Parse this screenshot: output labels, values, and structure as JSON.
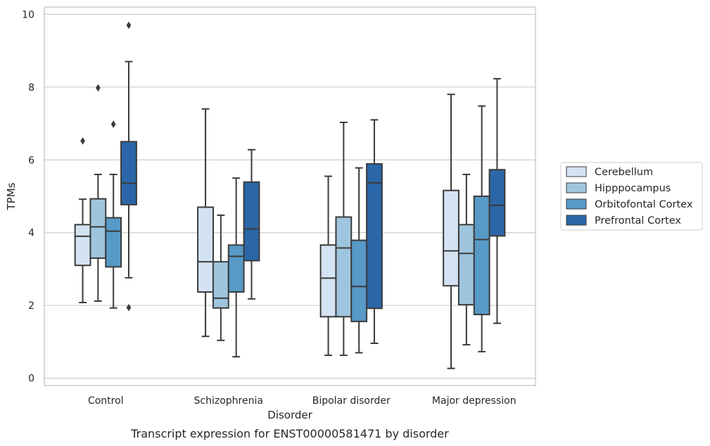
{
  "chart_data": {
    "type": "box",
    "title": "",
    "caption": "Transcript expression for ENST00000581471 by disorder",
    "xlabel": "Disorder",
    "ylabel": "TPMs",
    "ylim": [
      -0.2,
      10.2
    ],
    "yticks": [
      0,
      2,
      4,
      6,
      8,
      10
    ],
    "grid": "horizontal",
    "legend_position": "right",
    "categories": [
      "Control",
      "Schizophrenia",
      "Bipolar disorder",
      "Major depression"
    ],
    "series": [
      {
        "name": "Cerebellum",
        "color": "#d4e3f3",
        "boxes": [
          {
            "whisker_low": 2.08,
            "q1": 3.1,
            "median": 3.9,
            "q3": 4.22,
            "whisker_high": 4.92,
            "outliers": [
              6.52
            ]
          },
          {
            "whisker_low": 1.15,
            "q1": 2.37,
            "median": 3.2,
            "q3": 4.7,
            "whisker_high": 7.4,
            "outliers": []
          },
          {
            "whisker_low": 0.63,
            "q1": 1.69,
            "median": 2.75,
            "q3": 3.66,
            "whisker_high": 5.55,
            "outliers": []
          },
          {
            "whisker_low": 0.27,
            "q1": 2.54,
            "median": 3.5,
            "q3": 5.16,
            "whisker_high": 7.8,
            "outliers": []
          }
        ]
      },
      {
        "name": "Hipppocampus",
        "color": "#9fc5de",
        "boxes": [
          {
            "whisker_low": 2.12,
            "q1": 3.3,
            "median": 4.16,
            "q3": 4.93,
            "whisker_high": 5.6,
            "outliers": [
              7.98
            ]
          },
          {
            "whisker_low": 1.04,
            "q1": 1.93,
            "median": 2.2,
            "q3": 3.2,
            "whisker_high": 4.48,
            "outliers": []
          },
          {
            "whisker_low": 0.63,
            "q1": 1.69,
            "median": 3.58,
            "q3": 4.43,
            "whisker_high": 7.03,
            "outliers": []
          },
          {
            "whisker_low": 0.92,
            "q1": 2.02,
            "median": 3.43,
            "q3": 4.22,
            "whisker_high": 5.6,
            "outliers": []
          }
        ]
      },
      {
        "name": "Orbitofontal Cortex",
        "color": "#5799c7",
        "boxes": [
          {
            "whisker_low": 1.93,
            "q1": 3.06,
            "median": 4.04,
            "q3": 4.41,
            "whisker_high": 5.6,
            "outliers": [
              6.98
            ]
          },
          {
            "whisker_low": 0.59,
            "q1": 2.37,
            "median": 3.35,
            "q3": 3.66,
            "whisker_high": 5.5,
            "outliers": []
          },
          {
            "whisker_low": 0.7,
            "q1": 1.56,
            "median": 2.52,
            "q3": 3.79,
            "whisker_high": 5.78,
            "outliers": []
          },
          {
            "whisker_low": 0.73,
            "q1": 1.75,
            "median": 3.81,
            "q3": 5.0,
            "whisker_high": 7.48,
            "outliers": []
          }
        ]
      },
      {
        "name": "Prefrontal Cortex",
        "color": "#2b67a8",
        "boxes": [
          {
            "whisker_low": 2.76,
            "q1": 4.77,
            "median": 5.36,
            "q3": 6.5,
            "whisker_high": 8.7,
            "outliers": [
              9.7,
              1.94
            ]
          },
          {
            "whisker_low": 2.18,
            "q1": 3.23,
            "median": 4.1,
            "q3": 5.39,
            "whisker_high": 6.28,
            "outliers": []
          },
          {
            "whisker_low": 0.96,
            "q1": 1.92,
            "median": 5.37,
            "q3": 5.89,
            "whisker_high": 7.1,
            "outliers": []
          },
          {
            "whisker_low": 1.51,
            "q1": 3.91,
            "median": 4.75,
            "q3": 5.73,
            "whisker_high": 8.23,
            "outliers": []
          }
        ]
      }
    ]
  },
  "colors": {
    "grid": "#cccccc",
    "frame": "#cccccc",
    "box_edge": "#3b3b3b",
    "text": "#262626"
  }
}
